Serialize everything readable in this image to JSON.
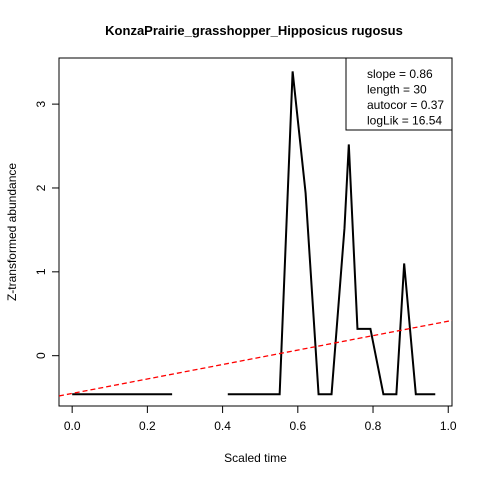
{
  "chart_data": {
    "type": "line",
    "title": "KonzaPrairie_grasshopper_Hipposicus rugosus",
    "xlabel": "Scaled time",
    "ylabel": "Z-transformed abundance",
    "xlim": [
      -0.035,
      1.01
    ],
    "ylim": [
      -0.6,
      3.55
    ],
    "xticks": [
      0.0,
      0.2,
      0.4,
      0.6,
      0.8,
      1.0
    ],
    "xtick_labels": [
      "0.0",
      "0.2",
      "0.4",
      "0.6",
      "0.8",
      "1.0"
    ],
    "yticks": [
      0,
      1,
      2,
      3
    ],
    "ytick_labels": [
      "0",
      "1",
      "2",
      "3"
    ],
    "grid": false,
    "series": [
      {
        "type": "line",
        "style": "solid",
        "color": "#000000",
        "segments": [
          [
            [
              0.0,
              -0.46
            ],
            [
              0.0345,
              -0.46
            ],
            [
              0.069,
              -0.46
            ],
            [
              0.1034,
              -0.46
            ],
            [
              0.1379,
              -0.46
            ],
            [
              0.1724,
              -0.46
            ],
            [
              0.2069,
              -0.46
            ],
            [
              0.2414,
              -0.46
            ],
            [
              0.2658,
              -0.46
            ]
          ],
          [
            [
              0.4138,
              -0.46
            ],
            [
              0.4483,
              -0.46
            ],
            [
              0.4828,
              -0.46
            ],
            [
              0.5172,
              -0.46
            ],
            [
              0.5517,
              -0.46
            ],
            [
              0.5862,
              3.39
            ],
            [
              0.6207,
              1.94
            ],
            [
              0.6552,
              -0.46
            ],
            [
              0.6897,
              -0.46
            ],
            [
              0.7241,
              1.52
            ],
            [
              0.7356,
              2.52
            ],
            [
              0.7586,
              0.32
            ],
            [
              0.7931,
              0.32
            ],
            [
              0.8276,
              -0.46
            ],
            [
              0.8621,
              -0.46
            ],
            [
              0.8828,
              1.1
            ],
            [
              0.9138,
              -0.46
            ],
            [
              0.931,
              -0.46
            ],
            [
              0.9655,
              -0.46
            ]
          ]
        ]
      },
      {
        "type": "line",
        "style": "dashed",
        "color": "#ff0000",
        "points": [
          [
            -0.035,
            -0.48
          ],
          [
            1.01,
            0.42
          ]
        ]
      }
    ],
    "legend": {
      "placement": "top-right",
      "entries": [
        "slope = 0.86",
        "length = 30",
        "autocor = 0.37",
        "logLik = 16.54"
      ]
    }
  }
}
